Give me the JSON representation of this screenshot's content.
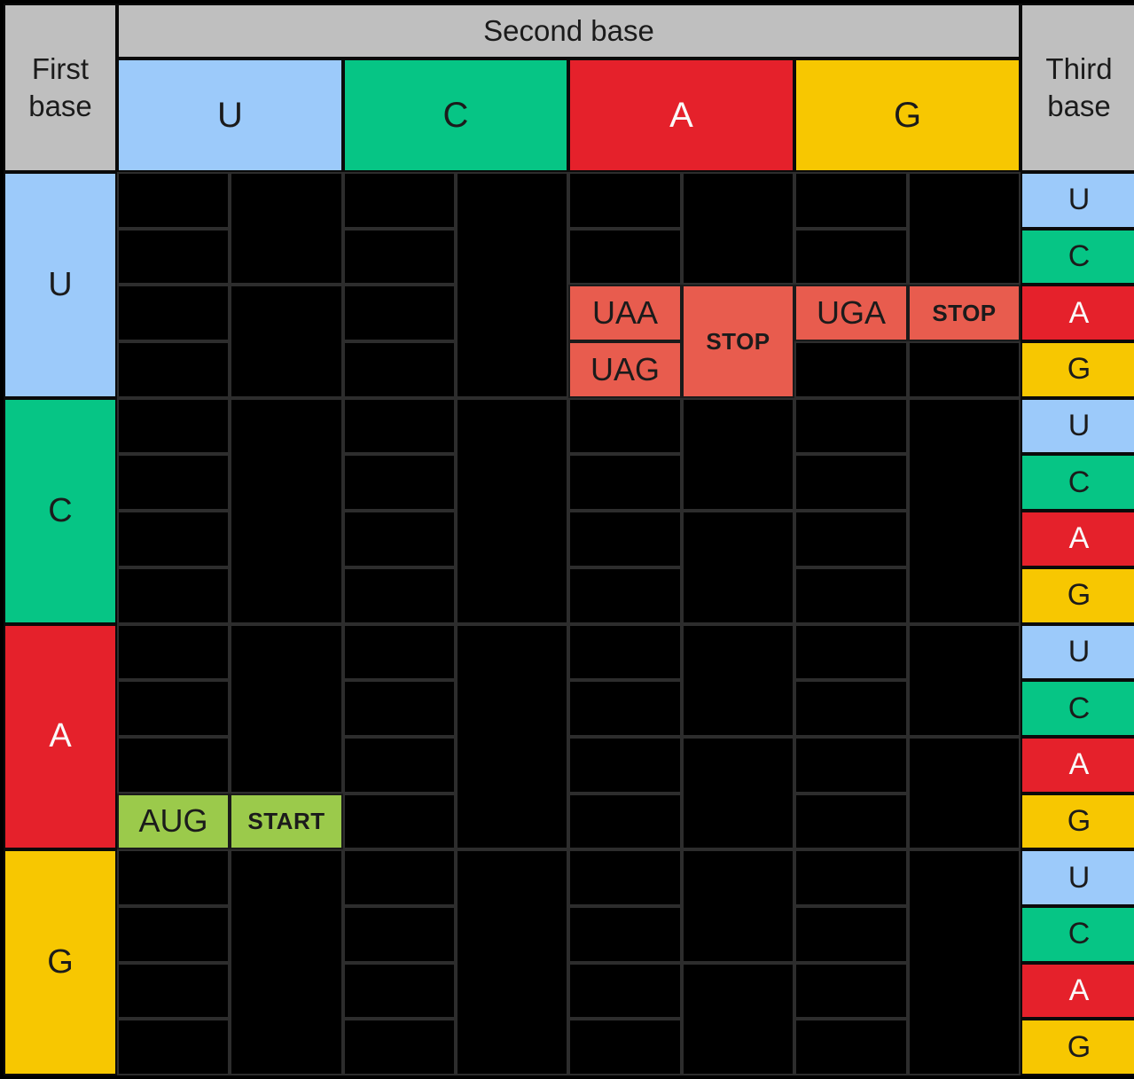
{
  "labels": {
    "second_base": "Second base",
    "first_base": "First base",
    "third_base": "Third base"
  },
  "colors": {
    "gray": "#BFBFBF",
    "blue": "#9CCAFA",
    "green": "#06C585",
    "red": "#E5212B",
    "yellow": "#F7C701",
    "stop_red": "#E85C4E",
    "start_green": "#9BCA4B",
    "hidden_black": "#000000",
    "gridline": "#2d2d2d"
  },
  "second_base_columns": [
    {
      "label": "U",
      "color": "blue",
      "text_light": false
    },
    {
      "label": "C",
      "color": "green",
      "text_light": false
    },
    {
      "label": "A",
      "color": "red",
      "text_light": true
    },
    {
      "label": "G",
      "color": "yellow",
      "text_light": false
    }
  ],
  "first_base_rows": [
    {
      "label": "U",
      "color": "blue",
      "text_light": false
    },
    {
      "label": "C",
      "color": "green",
      "text_light": false
    },
    {
      "label": "A",
      "color": "red",
      "text_light": true
    },
    {
      "label": "G",
      "color": "yellow",
      "text_light": false
    }
  ],
  "third_base_cells": [
    {
      "label": "U",
      "color": "blue",
      "text_light": false
    },
    {
      "label": "C",
      "color": "green",
      "text_light": false
    },
    {
      "label": "A",
      "color": "red",
      "text_light": true
    },
    {
      "label": "G",
      "color": "yellow",
      "text_light": false
    },
    {
      "label": "U",
      "color": "blue",
      "text_light": false
    },
    {
      "label": "C",
      "color": "green",
      "text_light": false
    },
    {
      "label": "A",
      "color": "red",
      "text_light": true
    },
    {
      "label": "G",
      "color": "yellow",
      "text_light": false
    },
    {
      "label": "U",
      "color": "blue",
      "text_light": false
    },
    {
      "label": "C",
      "color": "green",
      "text_light": false
    },
    {
      "label": "A",
      "color": "red",
      "text_light": true
    },
    {
      "label": "G",
      "color": "yellow",
      "text_light": false
    },
    {
      "label": "U",
      "color": "blue",
      "text_light": false
    },
    {
      "label": "C",
      "color": "green",
      "text_light": false
    },
    {
      "label": "A",
      "color": "red",
      "text_light": true
    },
    {
      "label": "G",
      "color": "yellow",
      "text_light": false
    }
  ],
  "table": {
    "visible_cells": [
      {
        "col": 4,
        "row": 2,
        "rowspan": 1,
        "text": "UAA",
        "color": "stop_red",
        "bold": false
      },
      {
        "col": 4,
        "row": 3,
        "rowspan": 1,
        "text": "UAG",
        "color": "stop_red",
        "bold": false
      },
      {
        "col": 5,
        "row": 2,
        "rowspan": 2,
        "text": "STOP",
        "color": "stop_red",
        "bold": true
      },
      {
        "col": 6,
        "row": 2,
        "rowspan": 1,
        "text": "UGA",
        "color": "stop_red",
        "bold": false
      },
      {
        "col": 7,
        "row": 2,
        "rowspan": 1,
        "text": "STOP",
        "color": "stop_red",
        "bold": true
      },
      {
        "col": 0,
        "row": 11,
        "rowspan": 1,
        "text": "AUG",
        "color": "start_green",
        "bold": false
      },
      {
        "col": 1,
        "row": 11,
        "rowspan": 1,
        "text": "START",
        "color": "start_green",
        "bold": true
      }
    ],
    "hidden_cells": [
      {
        "col": 0,
        "row": 0,
        "rowspan": 1
      },
      {
        "col": 0,
        "row": 1,
        "rowspan": 1
      },
      {
        "col": 0,
        "row": 2,
        "rowspan": 1
      },
      {
        "col": 0,
        "row": 3,
        "rowspan": 1
      },
      {
        "col": 0,
        "row": 4,
        "rowspan": 1
      },
      {
        "col": 0,
        "row": 5,
        "rowspan": 1
      },
      {
        "col": 0,
        "row": 6,
        "rowspan": 1
      },
      {
        "col": 0,
        "row": 7,
        "rowspan": 1
      },
      {
        "col": 0,
        "row": 8,
        "rowspan": 1
      },
      {
        "col": 0,
        "row": 9,
        "rowspan": 1
      },
      {
        "col": 0,
        "row": 10,
        "rowspan": 1
      },
      {
        "col": 0,
        "row": 12,
        "rowspan": 1
      },
      {
        "col": 0,
        "row": 13,
        "rowspan": 1
      },
      {
        "col": 0,
        "row": 14,
        "rowspan": 1
      },
      {
        "col": 0,
        "row": 15,
        "rowspan": 1
      },
      {
        "col": 1,
        "row": 0,
        "rowspan": 2
      },
      {
        "col": 1,
        "row": 2,
        "rowspan": 2
      },
      {
        "col": 1,
        "row": 4,
        "rowspan": 4
      },
      {
        "col": 1,
        "row": 8,
        "rowspan": 3
      },
      {
        "col": 1,
        "row": 12,
        "rowspan": 4
      },
      {
        "col": 2,
        "row": 0,
        "rowspan": 1
      },
      {
        "col": 2,
        "row": 1,
        "rowspan": 1
      },
      {
        "col": 2,
        "row": 2,
        "rowspan": 1
      },
      {
        "col": 2,
        "row": 3,
        "rowspan": 1
      },
      {
        "col": 2,
        "row": 4,
        "rowspan": 1
      },
      {
        "col": 2,
        "row": 5,
        "rowspan": 1
      },
      {
        "col": 2,
        "row": 6,
        "rowspan": 1
      },
      {
        "col": 2,
        "row": 7,
        "rowspan": 1
      },
      {
        "col": 2,
        "row": 8,
        "rowspan": 1
      },
      {
        "col": 2,
        "row": 9,
        "rowspan": 1
      },
      {
        "col": 2,
        "row": 10,
        "rowspan": 1
      },
      {
        "col": 2,
        "row": 11,
        "rowspan": 1
      },
      {
        "col": 2,
        "row": 12,
        "rowspan": 1
      },
      {
        "col": 2,
        "row": 13,
        "rowspan": 1
      },
      {
        "col": 2,
        "row": 14,
        "rowspan": 1
      },
      {
        "col": 2,
        "row": 15,
        "rowspan": 1
      },
      {
        "col": 3,
        "row": 0,
        "rowspan": 4
      },
      {
        "col": 3,
        "row": 4,
        "rowspan": 4
      },
      {
        "col": 3,
        "row": 8,
        "rowspan": 4
      },
      {
        "col": 3,
        "row": 12,
        "rowspan": 4
      },
      {
        "col": 4,
        "row": 0,
        "rowspan": 1
      },
      {
        "col": 4,
        "row": 1,
        "rowspan": 1
      },
      {
        "col": 4,
        "row": 4,
        "rowspan": 1
      },
      {
        "col": 4,
        "row": 5,
        "rowspan": 1
      },
      {
        "col": 4,
        "row": 6,
        "rowspan": 1
      },
      {
        "col": 4,
        "row": 7,
        "rowspan": 1
      },
      {
        "col": 4,
        "row": 8,
        "rowspan": 1
      },
      {
        "col": 4,
        "row": 9,
        "rowspan": 1
      },
      {
        "col": 4,
        "row": 10,
        "rowspan": 1
      },
      {
        "col": 4,
        "row": 11,
        "rowspan": 1
      },
      {
        "col": 4,
        "row": 12,
        "rowspan": 1
      },
      {
        "col": 4,
        "row": 13,
        "rowspan": 1
      },
      {
        "col": 4,
        "row": 14,
        "rowspan": 1
      },
      {
        "col": 4,
        "row": 15,
        "rowspan": 1
      },
      {
        "col": 5,
        "row": 0,
        "rowspan": 2
      },
      {
        "col": 5,
        "row": 4,
        "rowspan": 2
      },
      {
        "col": 5,
        "row": 6,
        "rowspan": 2
      },
      {
        "col": 5,
        "row": 8,
        "rowspan": 2
      },
      {
        "col": 5,
        "row": 10,
        "rowspan": 2
      },
      {
        "col": 5,
        "row": 12,
        "rowspan": 2
      },
      {
        "col": 5,
        "row": 14,
        "rowspan": 2
      },
      {
        "col": 6,
        "row": 0,
        "rowspan": 1
      },
      {
        "col": 6,
        "row": 1,
        "rowspan": 1
      },
      {
        "col": 6,
        "row": 3,
        "rowspan": 1
      },
      {
        "col": 6,
        "row": 4,
        "rowspan": 1
      },
      {
        "col": 6,
        "row": 5,
        "rowspan": 1
      },
      {
        "col": 6,
        "row": 6,
        "rowspan": 1
      },
      {
        "col": 6,
        "row": 7,
        "rowspan": 1
      },
      {
        "col": 6,
        "row": 8,
        "rowspan": 1
      },
      {
        "col": 6,
        "row": 9,
        "rowspan": 1
      },
      {
        "col": 6,
        "row": 10,
        "rowspan": 1
      },
      {
        "col": 6,
        "row": 11,
        "rowspan": 1
      },
      {
        "col": 6,
        "row": 12,
        "rowspan": 1
      },
      {
        "col": 6,
        "row": 13,
        "rowspan": 1
      },
      {
        "col": 6,
        "row": 14,
        "rowspan": 1
      },
      {
        "col": 6,
        "row": 15,
        "rowspan": 1
      },
      {
        "col": 7,
        "row": 0,
        "rowspan": 2
      },
      {
        "col": 7,
        "row": 3,
        "rowspan": 1
      },
      {
        "col": 7,
        "row": 4,
        "rowspan": 4
      },
      {
        "col": 7,
        "row": 8,
        "rowspan": 2
      },
      {
        "col": 7,
        "row": 10,
        "rowspan": 2
      },
      {
        "col": 7,
        "row": 12,
        "rowspan": 4
      }
    ]
  }
}
